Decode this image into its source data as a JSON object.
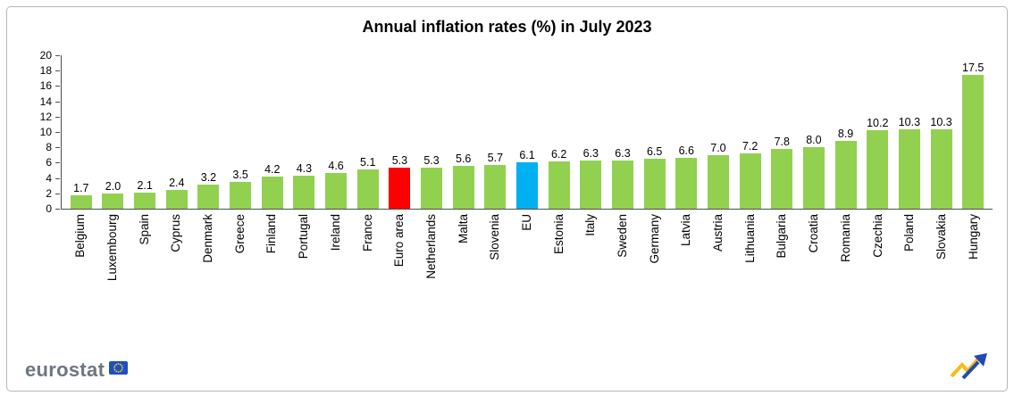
{
  "title": "Annual inflation rates (%) in July 2023",
  "footer": {
    "brand": "eurostat"
  },
  "chart_data": {
    "type": "bar",
    "title": "Annual inflation rates (%) in July 2023",
    "categories": [
      "Belgium",
      "Luxembourg",
      "Spain",
      "Cyprus",
      "Denmark",
      "Greece",
      "Finland",
      "Portugal",
      "Ireland",
      "France",
      "Euro area",
      "Netherlands",
      "Malta",
      "Slovenia",
      "EU",
      "Estonia",
      "Italy",
      "Sweden",
      "Germany",
      "Latvia",
      "Austria",
      "Lithuania",
      "Bulgaria",
      "Croatia",
      "Romania",
      "Czechia",
      "Poland",
      "Slovakia",
      "Hungary"
    ],
    "values": [
      1.7,
      2.0,
      2.1,
      2.4,
      3.2,
      3.5,
      4.2,
      4.3,
      4.6,
      5.1,
      5.3,
      5.3,
      5.6,
      5.7,
      6.1,
      6.2,
      6.3,
      6.3,
      6.5,
      6.6,
      7.0,
      7.2,
      7.8,
      8.0,
      8.9,
      10.2,
      10.3,
      10.3,
      17.5
    ],
    "xlabel": "",
    "ylabel": "",
    "ylim": [
      0,
      20
    ],
    "yticks": [
      0,
      2,
      4,
      6,
      8,
      10,
      12,
      14,
      16,
      18,
      20
    ],
    "grid": false,
    "legend_position": "none",
    "bar_color_default": "#92D050",
    "highlights": [
      {
        "category": "Euro area",
        "color": "#FF0000"
      },
      {
        "category": "EU",
        "color": "#00B0F0"
      }
    ],
    "value_label_decimals": 1
  },
  "icons": {
    "eu_flag": "eu-flag-icon",
    "trend_arrow": "trend-arrow-icon"
  },
  "colors": {
    "axis": "#4d4d4d",
    "frame_border": "#b6b6b6",
    "brand_text": "#6e7681",
    "flag_blue": "#1E50C0",
    "flag_star_yellow": "#FFD617",
    "arrow_yellow": "#FDB913",
    "arrow_blue": "#1F49B6"
  }
}
